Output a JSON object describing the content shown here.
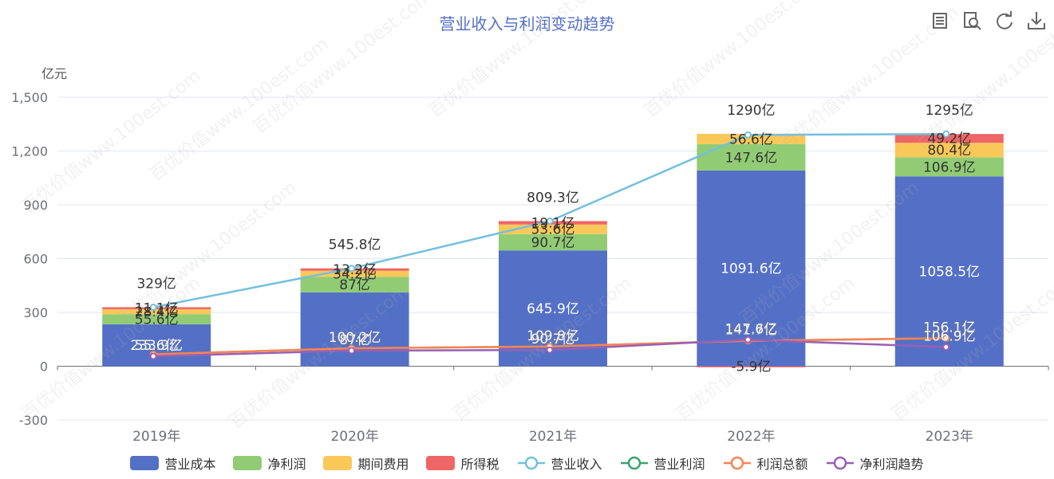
{
  "title": "营业收入与利润变动趋势",
  "unit_label": "亿元",
  "watermark": "百优价值www.100est.com",
  "toolbar": [
    {
      "name": "data-view-icon"
    },
    {
      "name": "zoom-icon"
    },
    {
      "name": "restore-icon"
    },
    {
      "name": "download-icon"
    }
  ],
  "colors": {
    "营业成本": "#5470c6",
    "净利润": "#91cc75",
    "期间费用": "#fac858",
    "所得税": "#ee6666",
    "营业收入": "#73c0de",
    "营业利润": "#3ba272",
    "利润总额": "#fc8452",
    "净利润趋势": "#9a60b4"
  },
  "chart_data": {
    "type": "bar",
    "categories": [
      "2019年",
      "2020年",
      "2021年",
      "2022年",
      "2023年"
    ],
    "ylim": [
      -300,
      1500
    ],
    "yticks": [
      -300,
      0,
      300,
      600,
      900,
      1200,
      1500
    ],
    "ytick_labels": [
      "-300",
      "0",
      "300",
      "600",
      "900",
      "1,200",
      "1,500"
    ],
    "grid": true,
    "legend_position": "bottom",
    "stacked_series": [
      {
        "name": "营业成本",
        "values": [
          233.9,
          411.3,
          645.9,
          1091.6,
          1058.5
        ],
        "labels": [
          "233.9亿",
          "",
          "645.9亿",
          "1091.6亿",
          "1058.5亿"
        ]
      },
      {
        "name": "净利润",
        "values": [
          55.6,
          87,
          90.7,
          147.6,
          106.9
        ],
        "labels": [
          "55.6亿",
          "87亿",
          "90.7亿",
          "147.6亿",
          "106.9亿"
        ]
      },
      {
        "name": "期间费用",
        "values": [
          28.4,
          34.2,
          53.6,
          56.6,
          80.4
        ],
        "labels": [
          "28.4亿",
          "34.2亿",
          "53.6亿",
          "56.6亿",
          "80.4亿"
        ]
      },
      {
        "name": "所得税",
        "values": [
          11.1,
          13.2,
          19.1,
          -5.9,
          49.2
        ],
        "labels": [
          "11.1亿",
          "13.2亿",
          "19.1亿",
          "-5.9亿",
          "49.2亿"
        ]
      }
    ],
    "total_labels": [
      "329亿",
      "545.8亿",
      "809.3亿",
      "1290亿",
      "1295亿"
    ],
    "line_series": [
      {
        "name": "营业收入",
        "values": [
          329,
          545.8,
          809.3,
          1290,
          1295
        ]
      },
      {
        "name": "营业利润",
        "values": [
          66.7,
          100.2,
          109.8,
          141.7,
          156.1
        ],
        "labels": [
          "",
          "",
          "",
          "",
          ""
        ]
      },
      {
        "name": "利润总额",
        "values": [
          66.7,
          100.2,
          109.8,
          141.7,
          156.1
        ],
        "labels": [
          "",
          "100.2亿",
          "109.8亿",
          "141.7亿",
          "156.1亿"
        ]
      },
      {
        "name": "净利润趋势",
        "values": [
          55.6,
          87,
          90.7,
          147.6,
          106.9
        ],
        "labels": [
          "55.6亿",
          "87亿",
          "90.7亿",
          "147.6亿",
          "106.9亿"
        ]
      }
    ],
    "legend": [
      "营业成本",
      "净利润",
      "期间费用",
      "所得税",
      "营业收入",
      "营业利润",
      "利润总额",
      "净利润趋势"
    ]
  }
}
